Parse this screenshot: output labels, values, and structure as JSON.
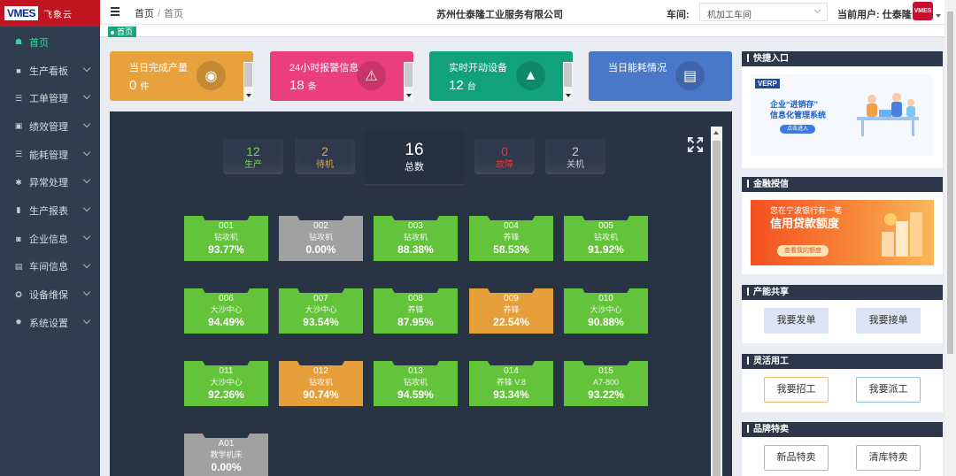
{
  "logo": {
    "brand": "VMES",
    "name": "飞象云"
  },
  "sidebar": {
    "items": [
      {
        "label": "首页",
        "icon": "dashboard-icon",
        "glyph": "☗",
        "active": true,
        "has_children": false
      },
      {
        "label": "生产看板",
        "icon": "board-icon",
        "glyph": "■",
        "has_children": true
      },
      {
        "label": "工单管理",
        "icon": "list-icon",
        "glyph": "☰",
        "has_children": true
      },
      {
        "label": "绩效管理",
        "icon": "copy-icon",
        "glyph": "▣",
        "has_children": true
      },
      {
        "label": "能耗管理",
        "icon": "list-icon",
        "glyph": "☰",
        "has_children": true
      },
      {
        "label": "异常处理",
        "icon": "bug-icon",
        "glyph": "✱",
        "has_children": true
      },
      {
        "label": "生产报表",
        "icon": "bar-chart-icon",
        "glyph": "▮",
        "has_children": true
      },
      {
        "label": "企业信息",
        "icon": "building-icon",
        "glyph": "◙",
        "has_children": true
      },
      {
        "label": "车间信息",
        "icon": "table-icon",
        "glyph": "▤",
        "has_children": true
      },
      {
        "label": "设备维保",
        "icon": "wrench-icon",
        "glyph": "✪",
        "has_children": true
      },
      {
        "label": "系统设置",
        "icon": "gear-icon",
        "glyph": "✹",
        "has_children": true
      }
    ]
  },
  "header": {
    "breadcrumb_home": "首页",
    "breadcrumb_sep": "/",
    "breadcrumb_current": "首页",
    "company": "苏州仕泰隆工业服务有限公司",
    "workshop_label": "车间:",
    "workshop_value": "机加工车间",
    "user_label": "当前用户: 仕泰隆",
    "avatar_text": "VMES"
  },
  "tabs": [
    {
      "label": "首页"
    }
  ],
  "cards": [
    {
      "title": "当日完成产量",
      "value": "0",
      "unit": "件",
      "color": "#e7a23d",
      "icon": "sensor-icon",
      "glyph": "◉",
      "scroll": true
    },
    {
      "title": "24小时报警信息",
      "value": "18",
      "unit": "条",
      "color": "#ea3f7c",
      "icon": "alarm-icon",
      "glyph": "⚠",
      "scroll": true
    },
    {
      "title": "实时开动设备",
      "value": "12",
      "unit": "台",
      "color": "#12a27a",
      "icon": "chart-up-icon",
      "glyph": "▲",
      "scroll": true
    },
    {
      "title": "当日能耗情况",
      "value": "",
      "unit": "",
      "color": "#4a78c8",
      "icon": "document-icon",
      "glyph": "▤",
      "scroll": false
    }
  ],
  "summary": {
    "run": {
      "value": "12",
      "label": "生产",
      "color": "#7ed24e"
    },
    "wait": {
      "value": "2",
      "label": "待机",
      "color": "#e8a53c"
    },
    "total": {
      "value": "16",
      "label": "总数"
    },
    "fault": {
      "value": "0",
      "label": "故障",
      "color": "#e53935"
    },
    "off": {
      "value": "2",
      "label": "关机",
      "color": "#c9ced6"
    }
  },
  "machines": [
    {
      "code": "001",
      "name": "钻攻机",
      "pct": "93.77%",
      "status": "run"
    },
    {
      "code": "002",
      "name": "钻攻机",
      "pct": "0.00%",
      "status": "off"
    },
    {
      "code": "003",
      "name": "钻攻机",
      "pct": "88.38%",
      "status": "run"
    },
    {
      "code": "004",
      "name": "养锋",
      "pct": "58.53%",
      "status": "run"
    },
    {
      "code": "005",
      "name": "钻攻机",
      "pct": "91.92%",
      "status": "run"
    },
    {
      "code": "006",
      "name": "大沙中心",
      "pct": "94.49%",
      "status": "run"
    },
    {
      "code": "007",
      "name": "大沙中心",
      "pct": "93.54%",
      "status": "run"
    },
    {
      "code": "008",
      "name": "养锋",
      "pct": "87.95%",
      "status": "run"
    },
    {
      "code": "009",
      "name": "养锋",
      "pct": "22.54%",
      "status": "wait"
    },
    {
      "code": "010",
      "name": "大沙中心",
      "pct": "90.88%",
      "status": "run"
    },
    {
      "code": "011",
      "name": "大沙中心",
      "pct": "92.36%",
      "status": "run"
    },
    {
      "code": "012",
      "name": "钻攻机",
      "pct": "90.74%",
      "status": "wait"
    },
    {
      "code": "013",
      "name": "钻攻机",
      "pct": "94.59%",
      "status": "run"
    },
    {
      "code": "014",
      "name": "养锋 V.8",
      "pct": "93.34%",
      "status": "run"
    },
    {
      "code": "015",
      "name": "A7-800",
      "pct": "93.22%",
      "status": "run"
    },
    {
      "code": "A01",
      "name": "教学机床",
      "pct": "0.00%",
      "status": "off"
    }
  ],
  "right": {
    "quick": {
      "title": "快捷入口",
      "banner_brand": "VERP",
      "banner_line1": "企业“进销存”",
      "banner_line2": "信息化管理系统",
      "banner_btn": "点击进入"
    },
    "finance": {
      "title": "金融授信",
      "banner_line1": "您在宁波银行有一笔",
      "banner_line2": "信用贷款额度",
      "banner_btn": "查看我的额度"
    },
    "capacity": {
      "title": "产能共享",
      "btn1": "我要发单",
      "btn2": "我要接单"
    },
    "labor": {
      "title": "灵活用工",
      "btn1": "我要招工",
      "btn2": "我要派工"
    },
    "brand": {
      "title": "品牌特卖",
      "btn1": "新品特卖",
      "btn2": "清库特卖"
    }
  }
}
